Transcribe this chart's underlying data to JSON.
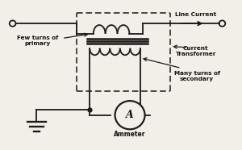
{
  "background_color": "#f0efe8",
  "labels": {
    "line_current": "Line Current",
    "few_turns": "Few turns of\nprimary",
    "current_transformer": "Current\nTransformer",
    "many_turns": "Many turns of\nsecondary",
    "ammeter": "Ammeter"
  },
  "line_color": "#1a1a1a",
  "text_color": "#111111",
  "lw": 1.3,
  "dashed_lw": 1.1,
  "xlim": [
    0,
    10
  ],
  "ylim": [
    0,
    6.5
  ]
}
